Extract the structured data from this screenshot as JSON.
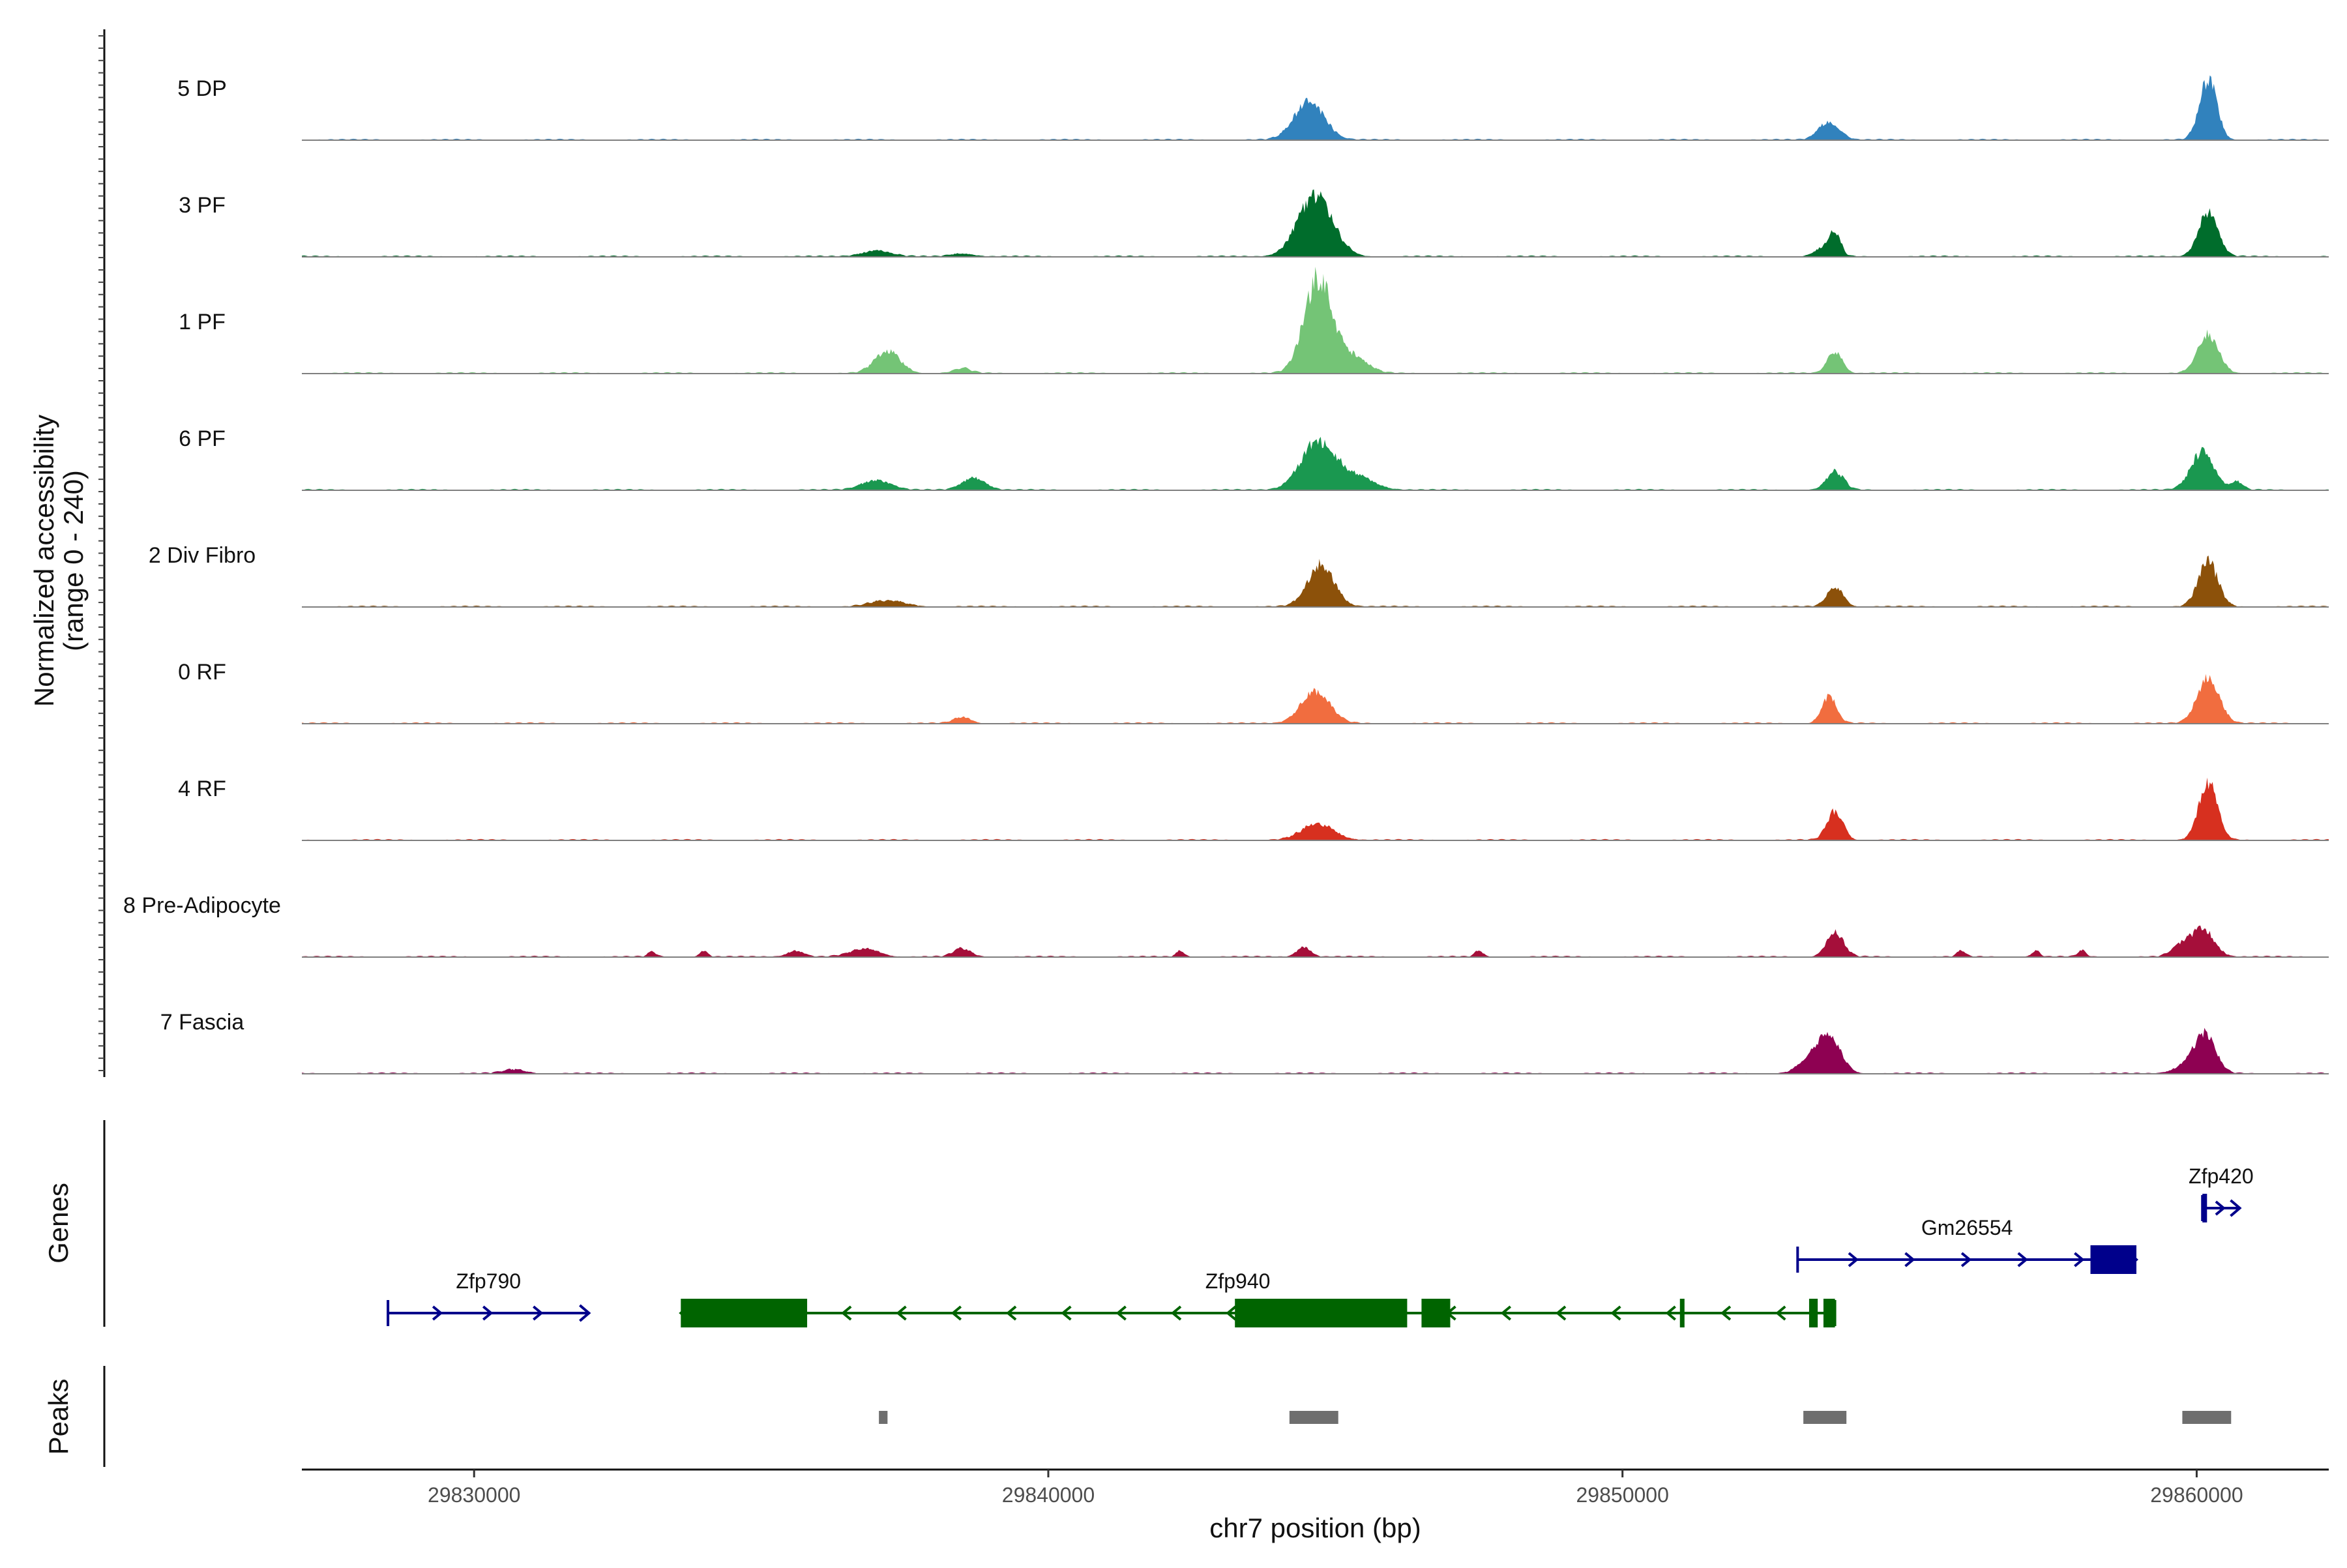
{
  "chart_data": {
    "type": "area",
    "chromosome": "chr7",
    "xlim": [
      29827000,
      29862300
    ],
    "xlabel": "chr7 position (bp)",
    "ylabel_line1": "Normalized accessibility",
    "ylabel_line2": "(range 0 - 240)",
    "y_range": [
      0,
      240
    ],
    "x_ticks": [
      29830000,
      29840000,
      29850000,
      29860000
    ],
    "x_tick_labels": [
      "29830000",
      "29840000",
      "29850000",
      "29860000"
    ],
    "genes_title": "Genes",
    "peaks_title": "Peaks",
    "tracks": [
      {
        "name": "5 DP",
        "color": "#3182bd",
        "peaks": [
          [
            29844550,
            95,
            260
          ],
          [
            29853600,
            45,
            180
          ],
          [
            29860200,
            150,
            150
          ]
        ]
      },
      {
        "name": "3 PF",
        "color": "#006d2c",
        "peaks": [
          [
            29837000,
            15,
            250
          ],
          [
            29838500,
            8,
            200
          ],
          [
            29844650,
            150,
            300
          ],
          [
            29853500,
            20,
            150
          ],
          [
            29853700,
            55,
            100
          ],
          [
            29860200,
            110,
            170
          ]
        ]
      },
      {
        "name": "1 PF",
        "color": "#74c476",
        "peaks": [
          [
            29837200,
            55,
            220
          ],
          [
            29838500,
            12,
            150
          ],
          [
            29844700,
            235,
            240
          ],
          [
            29845300,
            40,
            250
          ],
          [
            29853700,
            55,
            130
          ],
          [
            29860200,
            95,
            180
          ]
        ]
      },
      {
        "name": "6 PF",
        "color": "#1a9850",
        "peaks": [
          [
            29837000,
            25,
            250
          ],
          [
            29838700,
            30,
            200
          ],
          [
            29844700,
            120,
            300
          ],
          [
            29845400,
            30,
            300
          ],
          [
            29853700,
            45,
            150
          ],
          [
            29860100,
            95,
            200
          ],
          [
            29860700,
            20,
            100
          ]
        ]
      },
      {
        "name": "2 Div Fibro",
        "color": "#8c510a",
        "peaks": [
          [
            29837200,
            15,
            300
          ],
          [
            29844750,
            105,
            230
          ],
          [
            29853700,
            50,
            140
          ],
          [
            29860200,
            110,
            170
          ]
        ]
      },
      {
        "name": "0 RF",
        "color": "#f16d3f",
        "peaks": [
          [
            29838500,
            15,
            150
          ],
          [
            29844650,
            80,
            250
          ],
          [
            29853600,
            65,
            130
          ],
          [
            29860200,
            115,
            190
          ]
        ]
      },
      {
        "name": "4 RF",
        "color": "#d7301f",
        "peaks": [
          [
            29844700,
            40,
            280
          ],
          [
            29853700,
            70,
            140
          ],
          [
            29860200,
            140,
            160
          ]
        ]
      },
      {
        "name": "8 Pre-Adipocyte",
        "color": "#a50f3a",
        "peaks": [
          [
            29833100,
            12,
            70
          ],
          [
            29834000,
            15,
            70
          ],
          [
            29835600,
            15,
            150
          ],
          [
            29836800,
            20,
            250
          ],
          [
            29838500,
            20,
            150
          ],
          [
            29842300,
            15,
            70
          ],
          [
            29844450,
            25,
            120
          ],
          [
            29847500,
            15,
            70
          ],
          [
            29853700,
            60,
            150
          ],
          [
            29855900,
            15,
            70
          ],
          [
            29857200,
            15,
            70
          ],
          [
            29858000,
            15,
            70
          ],
          [
            29859700,
            25,
            150
          ],
          [
            29860100,
            70,
            200
          ]
        ]
      },
      {
        "name": "7 Fascia",
        "color": "#8e0152",
        "peaks": [
          [
            29853600,
            90,
            200
          ],
          [
            29853250,
            30,
            200
          ],
          [
            29860150,
            95,
            180
          ],
          [
            29859800,
            20,
            200
          ],
          [
            29830700,
            10,
            200
          ]
        ]
      }
    ],
    "genes": [
      {
        "name": "Zfp790",
        "start": 29828500,
        "end": 29832000,
        "strand": "+",
        "color": "#00008b",
        "row": 2,
        "exons": []
      },
      {
        "name": "Zfp940",
        "start": 29833600,
        "end": 29853700,
        "strand": "-",
        "color": "#006400",
        "row": 2,
        "exons": [
          [
            29833600,
            29835800
          ],
          [
            29843250,
            29846250
          ],
          [
            29846500,
            29847000
          ],
          [
            29851000,
            29851080
          ],
          [
            29853250,
            29853400
          ],
          [
            29853500,
            29853700
          ]
        ]
      },
      {
        "name": "Gm26554",
        "start": 29853050,
        "end": 29858950,
        "strand": "+",
        "color": "#00008b",
        "row": 1,
        "exons": [
          [
            29858150,
            29858950
          ]
        ]
      },
      {
        "name": "Zfp420",
        "start": 29860100,
        "end": 29860750,
        "strand": "+",
        "color": "#00008b",
        "row": 0,
        "exons": [
          [
            29860100,
            29860180
          ]
        ]
      }
    ],
    "peaks": [
      [
        29837050,
        29837200
      ],
      [
        29844200,
        29845050
      ],
      [
        29853150,
        29853900
      ],
      [
        29859750,
        29860600
      ]
    ]
  }
}
